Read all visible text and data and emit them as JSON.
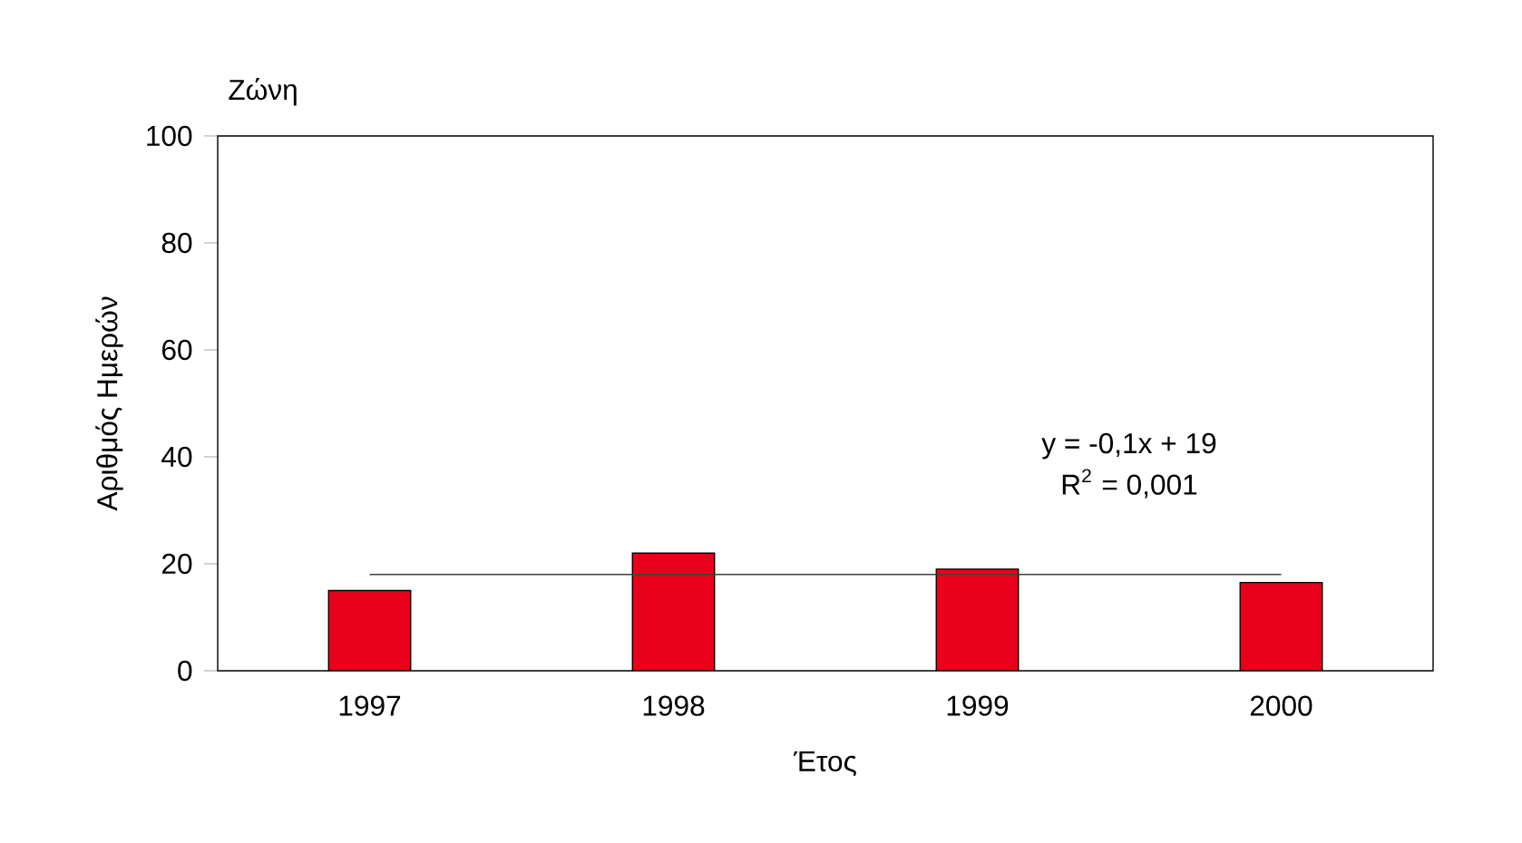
{
  "chart_data": {
    "type": "bar",
    "title": "Ζώνη",
    "xlabel": "Έτος",
    "ylabel": "Αριθμός Ημερών",
    "categories": [
      "1997",
      "1998",
      "1999",
      "2000"
    ],
    "series": [
      {
        "color": "#e8001a",
        "values": [
          15,
          22,
          19,
          16.5
        ]
      },
      {
        "type": "line",
        "color": "#404040",
        "values": [
          18,
          18,
          18,
          18
        ]
      }
    ],
    "ylim": [
      0,
      100
    ],
    "yticks": [
      0,
      20,
      40,
      60,
      80,
      100
    ],
    "grid": false,
    "annotations": [
      "y = -0,1x + 19",
      "R$^{2}$ = 0,001"
    ]
  }
}
